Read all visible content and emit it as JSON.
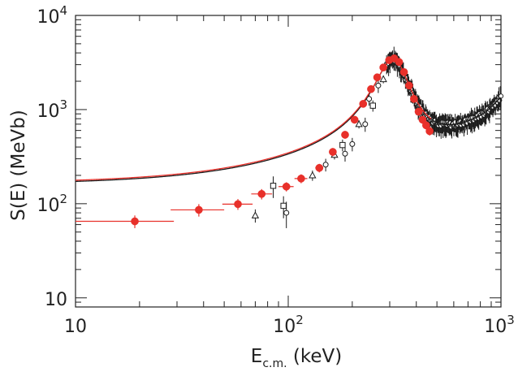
{
  "chart_data": {
    "type": "scatter",
    "title": "",
    "xlabel": "E",
    "xlabel_sub": "c.m.",
    "xlabel_unit": " (keV)",
    "ylabel": "S(E) (MeVb)",
    "xscale": "log",
    "yscale": "log",
    "xlim": [
      10,
      1000
    ],
    "ylim": [
      8,
      10000
    ],
    "x_ticks": [
      {
        "value": 10,
        "label": "10"
      },
      {
        "value": 100,
        "base": "10",
        "exp": "2"
      },
      {
        "value": 1000,
        "base": "10",
        "exp": "3"
      }
    ],
    "y_ticks": [
      {
        "value": 10,
        "label": "10"
      },
      {
        "value": 100,
        "base": "10",
        "exp": "2"
      },
      {
        "value": 1000,
        "base": "10",
        "exp": "3"
      },
      {
        "value": 10000,
        "base": "10",
        "exp": "4"
      }
    ],
    "colors": {
      "red": "#e8302a",
      "black": "#1a1a1a"
    },
    "series": [
      {
        "name": "red data (filled circles)",
        "color": "#e8302a",
        "marker": "filled-circle",
        "points": [
          {
            "x": 19,
            "y": 65,
            "xerr": [
              9,
              10
            ],
            "yerr": 10
          },
          {
            "x": 38,
            "y": 86,
            "xerr": [
              10,
              12
            ],
            "yerr": 13
          },
          {
            "x": 58,
            "y": 99,
            "xerr": [
              9,
              10
            ],
            "yerr": 13
          },
          {
            "x": 75,
            "y": 127,
            "xerr": [
              8,
              9
            ],
            "yerr": 16
          },
          {
            "x": 98,
            "y": 152,
            "xerr": [
              8,
              8
            ],
            "yerr": 17
          },
          {
            "x": 115,
            "y": 185,
            "xerr": [
              8,
              8
            ],
            "yerr": 20
          },
          {
            "x": 140,
            "y": 240,
            "xerr": [
              6,
              6
            ],
            "yerr": 25
          },
          {
            "x": 162,
            "y": 355,
            "xerr": [
              6,
              6
            ],
            "yerr": 35
          },
          {
            "x": 185,
            "y": 540,
            "xerr": [
              6,
              6
            ],
            "yerr": 50
          },
          {
            "x": 205,
            "y": 780,
            "xerr": [
              6,
              6
            ],
            "yerr": 70
          },
          {
            "x": 225,
            "y": 1150,
            "xerr": [
              6,
              6
            ],
            "yerr": 100
          },
          {
            "x": 245,
            "y": 1650,
            "xerr": [
              6,
              6
            ],
            "yerr": 140
          },
          {
            "x": 262,
            "y": 2200,
            "xerr": [
              5,
              5
            ],
            "yerr": 180
          },
          {
            "x": 280,
            "y": 2800,
            "xerr": [
              5,
              5
            ],
            "yerr": 230
          },
          {
            "x": 298,
            "y": 3350,
            "xerr": [
              5,
              5
            ],
            "yerr": 280
          },
          {
            "x": 315,
            "y": 3500,
            "xerr": [
              5,
              5
            ],
            "yerr": 300
          },
          {
            "x": 332,
            "y": 3200,
            "xerr": [
              5,
              5
            ],
            "yerr": 270
          },
          {
            "x": 350,
            "y": 2500,
            "xerr": [
              5,
              5
            ],
            "yerr": 220
          },
          {
            "x": 370,
            "y": 1800,
            "xerr": [
              5,
              5
            ],
            "yerr": 160
          },
          {
            "x": 390,
            "y": 1300,
            "xerr": [
              5,
              5
            ],
            "yerr": 120
          },
          {
            "x": 410,
            "y": 950,
            "xerr": [
              5,
              5
            ],
            "yerr": 90
          },
          {
            "x": 428,
            "y": 780,
            "xerr": [
              5,
              5
            ],
            "yerr": 75
          },
          {
            "x": 445,
            "y": 680,
            "xerr": [
              5,
              5
            ],
            "yerr": 65
          },
          {
            "x": 462,
            "y": 590,
            "xerr": [
              5,
              5
            ],
            "yerr": 60
          }
        ]
      },
      {
        "name": "black data (open squares)",
        "color": "#1a1a1a",
        "marker": "open-square",
        "points": [
          {
            "x": 85,
            "y": 155,
            "yerr": 40
          },
          {
            "x": 95,
            "y": 95,
            "yerr": 25
          },
          {
            "x": 180,
            "y": 420,
            "yerr": 60
          },
          {
            "x": 250,
            "y": 1100,
            "yerr": 150
          }
        ]
      },
      {
        "name": "black data (open triangles)",
        "color": "#1a1a1a",
        "marker": "open-triangle",
        "points": [
          {
            "x": 70,
            "y": 75,
            "yerr": 12
          },
          {
            "x": 130,
            "y": 200,
            "yerr": 25
          },
          {
            "x": 165,
            "y": 330,
            "yerr": 35
          },
          {
            "x": 215,
            "y": 700,
            "yerr": 70
          },
          {
            "x": 280,
            "y": 2100,
            "yerr": 200
          }
        ]
      },
      {
        "name": "black data (open circles)",
        "color": "#1a1a1a",
        "marker": "open-circle",
        "points": [
          {
            "x": 98,
            "y": 80,
            "yerr": 25
          },
          {
            "x": 150,
            "y": 260,
            "yerr": 40
          },
          {
            "x": 185,
            "y": 340,
            "yerr": 60
          },
          {
            "x": 200,
            "y": 430,
            "yerr": 70
          },
          {
            "x": 230,
            "y": 700,
            "yerr": 120
          },
          {
            "x": 240,
            "y": 1300,
            "yerr": 200
          },
          {
            "x": 265,
            "y": 1800,
            "yerr": 300
          }
        ]
      },
      {
        "name": "black dense data (open circles, continuous)",
        "color": "#1a1a1a",
        "marker": "open-circle-small",
        "dense_range": [
          290,
          1000
        ],
        "relative_error": 0.22
      }
    ],
    "curves": [
      {
        "name": "fit curve (black)",
        "color": "#1a1a1a",
        "x_range": [
          10,
          1000
        ]
      },
      {
        "name": "fit curve (red)",
        "color": "#e8302a",
        "x_range": [
          10,
          470
        ]
      }
    ]
  }
}
